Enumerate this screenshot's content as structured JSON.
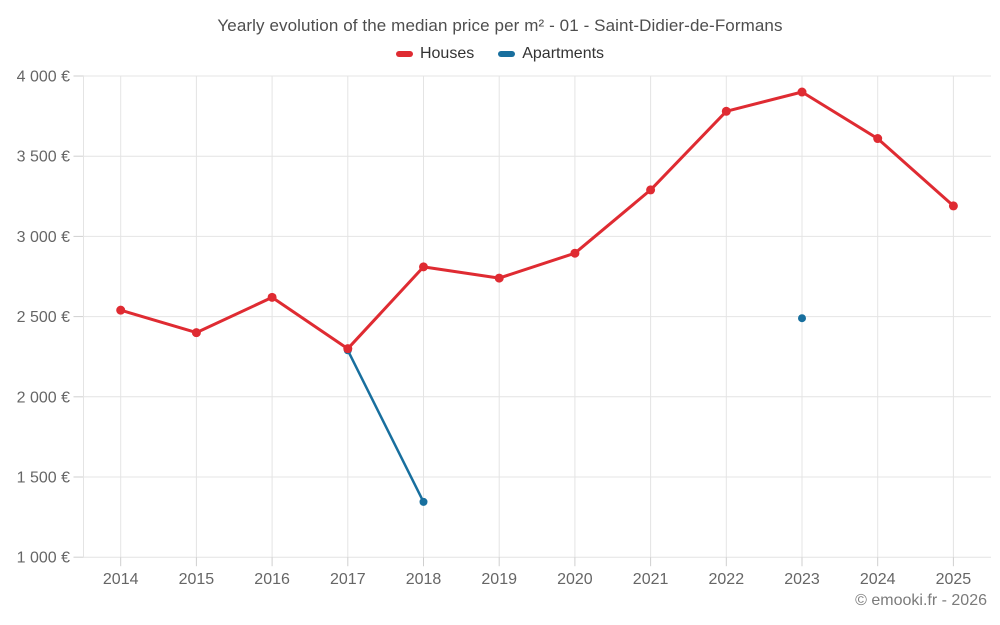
{
  "chart_data": {
    "type": "line",
    "title": "Yearly evolution of the median price per m² - 01 - Saint-Didier-de-Formans",
    "x": [
      "2014",
      "2015",
      "2016",
      "2017",
      "2018",
      "2019",
      "2020",
      "2021",
      "2022",
      "2023",
      "2024",
      "2025"
    ],
    "series": [
      {
        "name": "Houses",
        "color": "#df2b32",
        "values": [
          2540,
          2400,
          2620,
          2300,
          2810,
          2740,
          2895,
          3290,
          3780,
          3900,
          3610,
          3190
        ]
      },
      {
        "name": "Apartments",
        "color": "#186f9e",
        "values": [
          null,
          null,
          null,
          2290,
          1345,
          null,
          null,
          null,
          null,
          2490,
          null,
          null
        ]
      }
    ],
    "ylim": [
      1000,
      4000
    ],
    "ytick_step": 500,
    "ytick_labels": [
      "4 000 €",
      "3 500 €",
      "3 000 €",
      "2 500 €",
      "2 000 €",
      "1 500 €",
      "1 000 €"
    ],
    "currency": "€",
    "grid": true,
    "legend_position": "top"
  },
  "footer": {
    "copyright": "© emooki.fr - 2026"
  },
  "theme": {
    "grid_color": "#e4e4e4",
    "tick_color": "#cfcfcf",
    "axis_label_color": "#666666",
    "title_color": "#4e4e4e",
    "legend_text_color": "#333333",
    "credits_color": "#7b7b7b"
  }
}
